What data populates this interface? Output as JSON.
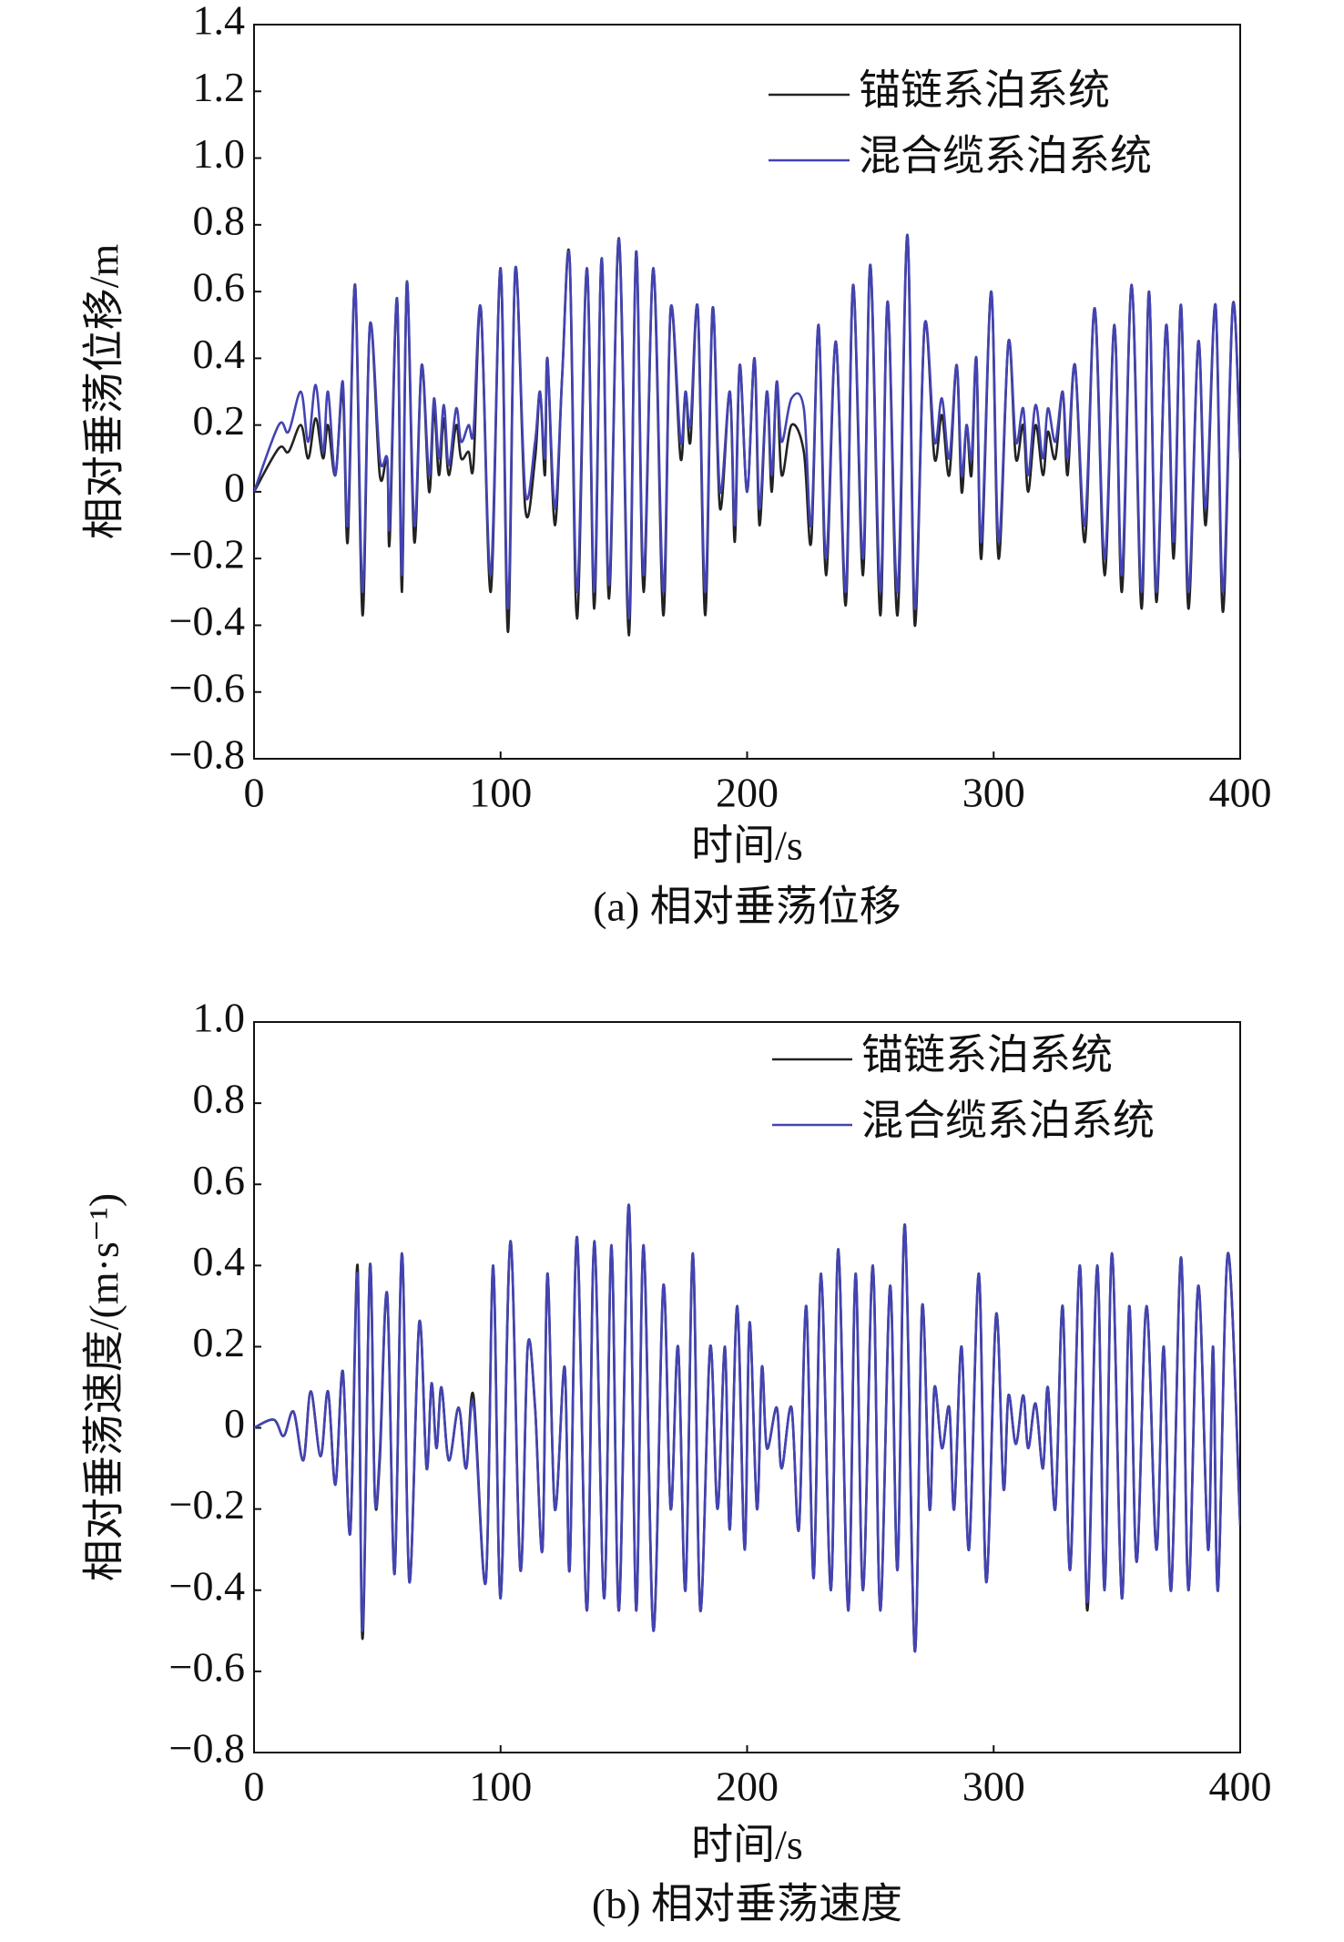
{
  "chart_data": [
    {
      "type": "line",
      "title": "(a) 相对垂荡位移",
      "xlabel": "时间/s",
      "ylabel": "相对垂荡位移/m",
      "xlim": [
        0,
        400
      ],
      "xticks": [
        0,
        100,
        200,
        300,
        400
      ],
      "ylim": [
        -0.8,
        1.4
      ],
      "yticks": [
        {
          "value": -0.8,
          "label": "−0.8"
        },
        {
          "value": -0.6,
          "label": "−0.6"
        },
        {
          "value": -0.4,
          "label": "−0.4"
        },
        {
          "value": -0.2,
          "label": "−0.2"
        },
        0,
        0.2,
        0.4,
        0.6,
        0.8,
        {
          "value": 1.0,
          "label": "1.0"
        },
        1.2,
        1.4
      ],
      "grid": false,
      "legend": "upper right",
      "x": [
        0,
        10,
        14,
        19,
        22,
        25,
        28,
        30,
        33,
        36,
        38,
        41,
        44,
        47,
        51,
        54,
        55,
        58,
        60,
        62,
        65,
        68,
        71,
        73,
        75,
        77,
        79,
        82,
        84,
        87,
        89,
        92,
        96,
        100,
        103,
        106,
        110,
        114,
        116,
        118,
        119,
        122,
        125,
        128,
        131,
        135,
        138,
        141,
        144,
        148,
        152,
        155,
        158,
        162,
        166,
        169,
        173,
        175,
        177,
        180,
        183,
        186,
        189,
        193,
        195,
        197,
        200,
        203,
        205,
        208,
        210,
        212,
        214,
        218,
        223,
        226,
        229,
        232,
        236,
        240,
        243,
        247,
        250,
        254,
        257,
        261,
        265,
        268,
        272,
        276,
        279,
        282,
        285,
        287,
        289,
        291,
        293,
        295,
        299,
        302,
        306,
        309,
        312,
        314,
        317,
        320,
        322,
        325,
        328,
        330,
        333,
        337,
        341,
        345,
        349,
        352,
        356,
        360,
        363,
        366,
        370,
        373,
        376,
        379,
        383,
        386,
        390,
        393,
        397,
        400
      ],
      "series": [
        {
          "name": "锚链系泊系统",
          "color": "#222222",
          "values": [
            0,
            0.13,
            0.12,
            0.2,
            0.1,
            0.22,
            0.1,
            0.2,
            0.05,
            0.3,
            -0.15,
            0.62,
            -0.37,
            0.5,
            0.05,
            0.1,
            -0.15,
            0.58,
            -0.3,
            0.63,
            -0.15,
            0.38,
            0,
            0.25,
            0.05,
            0.22,
            0.05,
            0.2,
            0.1,
            0.12,
            0.08,
            0.55,
            -0.3,
            0.67,
            -0.42,
            0.67,
            -0.05,
            0.1,
            0.3,
            0.05,
            0.4,
            -0.1,
            0.35,
            0.7,
            -0.38,
            0.67,
            -0.35,
            0.7,
            -0.32,
            0.76,
            -0.43,
            0.72,
            -0.3,
            0.67,
            -0.37,
            0.55,
            0.1,
            0.3,
            0.15,
            0.55,
            -0.37,
            0.55,
            -0.05,
            0.3,
            -0.15,
            0.38,
            0,
            0.4,
            -0.1,
            0.3,
            0,
            0.33,
            0.05,
            0.2,
            0.12,
            -0.15,
            0.5,
            -0.25,
            0.45,
            -0.34,
            0.62,
            -0.25,
            0.68,
            -0.37,
            0.57,
            -0.37,
            0.77,
            -0.4,
            0.5,
            0.1,
            0.23,
            0.05,
            0.38,
            0,
            0.2,
            0.05,
            0.4,
            -0.2,
            0.6,
            -0.2,
            0.45,
            0.1,
            0.2,
            0,
            0.2,
            0.05,
            0.18,
            0.1,
            0.3,
            0.05,
            0.38,
            -0.15,
            0.55,
            -0.25,
            0.5,
            -0.3,
            0.62,
            -0.35,
            0.6,
            -0.33,
            0.5,
            -0.2,
            0.56,
            -0.35,
            0.45,
            -0.1,
            0.56,
            -0.36,
            0.56,
            0.1
          ]
        },
        {
          "name": "混合缆系泊系统",
          "color": "#4343b3",
          "values": [
            0,
            0.2,
            0.18,
            0.3,
            0.15,
            0.32,
            0.12,
            0.3,
            0.05,
            0.33,
            -0.1,
            0.62,
            -0.3,
            0.5,
            0.1,
            0.1,
            -0.1,
            0.58,
            -0.25,
            0.63,
            -0.1,
            0.38,
            0.05,
            0.28,
            0.1,
            0.26,
            0.08,
            0.25,
            0.15,
            0.2,
            0.18,
            0.55,
            -0.25,
            0.67,
            -0.35,
            0.67,
            0,
            0.15,
            0.3,
            0.1,
            0.4,
            -0.05,
            0.35,
            0.7,
            -0.3,
            0.67,
            -0.3,
            0.7,
            -0.28,
            0.76,
            -0.38,
            0.72,
            -0.25,
            0.67,
            -0.3,
            0.55,
            0.15,
            0.3,
            0.2,
            0.55,
            -0.3,
            0.55,
            0,
            0.3,
            -0.1,
            0.38,
            0,
            0.4,
            -0.05,
            0.3,
            0.05,
            0.33,
            0.15,
            0.28,
            0.25,
            -0.1,
            0.5,
            -0.2,
            0.45,
            -0.3,
            0.62,
            -0.2,
            0.68,
            -0.3,
            0.57,
            -0.3,
            0.77,
            -0.35,
            0.5,
            0.15,
            0.28,
            0.1,
            0.38,
            0.05,
            0.2,
            0.1,
            0.4,
            -0.15,
            0.6,
            -0.15,
            0.45,
            0.15,
            0.25,
            0.05,
            0.26,
            0.1,
            0.25,
            0.15,
            0.3,
            0.1,
            0.38,
            -0.1,
            0.55,
            -0.2,
            0.5,
            -0.25,
            0.62,
            -0.3,
            0.6,
            -0.3,
            0.5,
            -0.15,
            0.56,
            -0.3,
            0.45,
            -0.05,
            0.56,
            -0.3,
            0.56,
            0.1
          ]
        }
      ]
    },
    {
      "type": "line",
      "title": "(b) 相对垂荡速度",
      "xlabel": "时间/s",
      "ylabel": "相对垂荡速度/(m·s⁻¹)",
      "xlim": [
        0,
        400
      ],
      "xticks": [
        0,
        100,
        200,
        300,
        400
      ],
      "ylim": [
        -0.8,
        1.0
      ],
      "yticks": [
        {
          "value": -0.8,
          "label": "−0.8"
        },
        {
          "value": -0.6,
          "label": "−0.6"
        },
        {
          "value": -0.4,
          "label": "−0.4"
        },
        {
          "value": -0.2,
          "label": "−0.2"
        },
        0,
        0.2,
        0.4,
        0.6,
        0.8,
        {
          "value": 1.0,
          "label": "1.0"
        }
      ],
      "grid": false,
      "legend": "upper right",
      "x": [
        0,
        8,
        12,
        16,
        20,
        23,
        27,
        30,
        33,
        36,
        39,
        42,
        44,
        47,
        49,
        51,
        54,
        57,
        60,
        63,
        67,
        70,
        72,
        74,
        76,
        79,
        83,
        86,
        89,
        94,
        97,
        100,
        104,
        108,
        111,
        114,
        117,
        119,
        122,
        126,
        128,
        131,
        135,
        138,
        142,
        145,
        148,
        152,
        155,
        158,
        162,
        166,
        169,
        172,
        175,
        178,
        181,
        185,
        188,
        191,
        193,
        196,
        199,
        201,
        204,
        206,
        208,
        212,
        214,
        218,
        221,
        224,
        227,
        230,
        234,
        237,
        241,
        244,
        247,
        251,
        254,
        258,
        261,
        264,
        268,
        271,
        274,
        276,
        279,
        282,
        284,
        287,
        290,
        294,
        297,
        301,
        304,
        306,
        309,
        312,
        314,
        317,
        320,
        322,
        325,
        328,
        331,
        335,
        338,
        342,
        345,
        348,
        352,
        355,
        358,
        362,
        366,
        369,
        372,
        376,
        379,
        383,
        387,
        389,
        391,
        395,
        400
      ],
      "series": [
        {
          "name": "锚链系泊系统",
          "color": "#222222",
          "values": [
            0,
            0.02,
            -0.02,
            0.04,
            -0.08,
            0.09,
            -0.07,
            0.09,
            -0.14,
            0.14,
            -0.26,
            0.4,
            -0.52,
            0.4,
            -0.17,
            -0.08,
            0.33,
            -0.36,
            0.43,
            -0.38,
            0.26,
            -0.1,
            0.11,
            -0.05,
            0.1,
            -0.08,
            0.05,
            -0.1,
            0.08,
            -0.38,
            0.4,
            -0.42,
            0.46,
            -0.35,
            0.2,
            0.05,
            -0.3,
            0.38,
            -0.2,
            0.15,
            -0.35,
            0.47,
            -0.45,
            0.46,
            -0.42,
            0.45,
            -0.45,
            0.55,
            -0.45,
            0.45,
            -0.5,
            0.35,
            -0.2,
            0.2,
            -0.4,
            0.43,
            -0.45,
            0.2,
            -0.2,
            0.2,
            -0.25,
            0.3,
            -0.3,
            0.26,
            -0.2,
            0.15,
            -0.05,
            0.05,
            -0.1,
            0.05,
            -0.25,
            0.3,
            -0.37,
            0.38,
            -0.4,
            0.44,
            -0.45,
            0.38,
            -0.4,
            0.4,
            -0.45,
            0.35,
            -0.35,
            0.5,
            -0.55,
            0.3,
            -0.2,
            0.1,
            -0.05,
            0.05,
            -0.2,
            0.2,
            -0.3,
            0.38,
            -0.38,
            0.28,
            -0.15,
            0.08,
            -0.04,
            0.08,
            -0.05,
            0.06,
            -0.1,
            0.1,
            -0.2,
            0.3,
            -0.35,
            0.4,
            -0.45,
            0.4,
            -0.4,
            0.43,
            -0.42,
            0.3,
            -0.33,
            0.3,
            -0.3,
            0.2,
            -0.4,
            0.42,
            -0.4,
            0.35,
            -0.3,
            0.2,
            -0.4,
            0.43,
            -0.24
          ]
        },
        {
          "name": "混合缆系泊系统",
          "color": "#4343b3",
          "values": [
            0,
            0.02,
            -0.02,
            0.04,
            -0.08,
            0.09,
            -0.07,
            0.09,
            -0.14,
            0.14,
            -0.26,
            0.38,
            -0.5,
            0.4,
            -0.17,
            -0.06,
            0.33,
            -0.36,
            0.43,
            -0.38,
            0.26,
            -0.1,
            0.11,
            -0.05,
            0.1,
            -0.08,
            0.05,
            -0.1,
            0.06,
            -0.38,
            0.4,
            -0.42,
            0.46,
            -0.35,
            0.2,
            0.05,
            -0.3,
            0.38,
            -0.2,
            0.15,
            -0.35,
            0.47,
            -0.45,
            0.46,
            -0.42,
            0.45,
            -0.45,
            0.55,
            -0.45,
            0.45,
            -0.5,
            0.35,
            -0.2,
            0.2,
            -0.4,
            0.43,
            -0.45,
            0.2,
            -0.2,
            0.2,
            -0.25,
            0.3,
            -0.3,
            0.26,
            -0.2,
            0.15,
            -0.05,
            0.05,
            -0.1,
            0.05,
            -0.25,
            0.3,
            -0.37,
            0.38,
            -0.4,
            0.44,
            -0.45,
            0.38,
            -0.4,
            0.4,
            -0.45,
            0.35,
            -0.35,
            0.5,
            -0.55,
            0.3,
            -0.2,
            0.1,
            -0.05,
            0.05,
            -0.2,
            0.2,
            -0.3,
            0.38,
            -0.38,
            0.28,
            -0.15,
            0.08,
            -0.04,
            0.08,
            -0.05,
            0.06,
            -0.1,
            0.1,
            -0.2,
            0.3,
            -0.35,
            0.4,
            -0.43,
            0.4,
            -0.4,
            0.43,
            -0.42,
            0.3,
            -0.33,
            0.3,
            -0.3,
            0.2,
            -0.4,
            0.42,
            -0.4,
            0.35,
            -0.3,
            0.2,
            -0.4,
            0.43,
            -0.24
          ]
        }
      ]
    }
  ]
}
